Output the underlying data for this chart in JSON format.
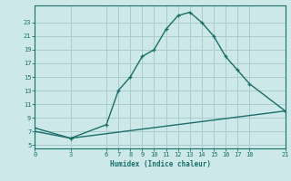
{
  "xlabel": "Humidex (Indice chaleur)",
  "bg_color": "#cce8e8",
  "grid_color": "#aacccc",
  "line_color": "#1a6e6a",
  "curve_x": [
    0,
    3,
    6,
    7,
    8,
    9,
    10,
    11,
    12,
    13,
    14,
    15,
    16,
    17,
    18,
    21
  ],
  "curve_y": [
    7,
    6,
    8,
    13,
    15,
    18,
    19,
    22,
    24,
    24.5,
    23,
    21,
    18,
    16,
    14,
    10
  ],
  "line_x": [
    0,
    3,
    21
  ],
  "line_y": [
    7.5,
    6.0,
    10
  ],
  "xticks": [
    0,
    3,
    6,
    7,
    8,
    9,
    10,
    11,
    12,
    13,
    14,
    15,
    16,
    17,
    18,
    21
  ],
  "yticks": [
    5,
    7,
    9,
    11,
    13,
    15,
    17,
    19,
    21,
    23
  ],
  "ylim": [
    4.5,
    25.5
  ],
  "xlim": [
    0,
    21
  ]
}
